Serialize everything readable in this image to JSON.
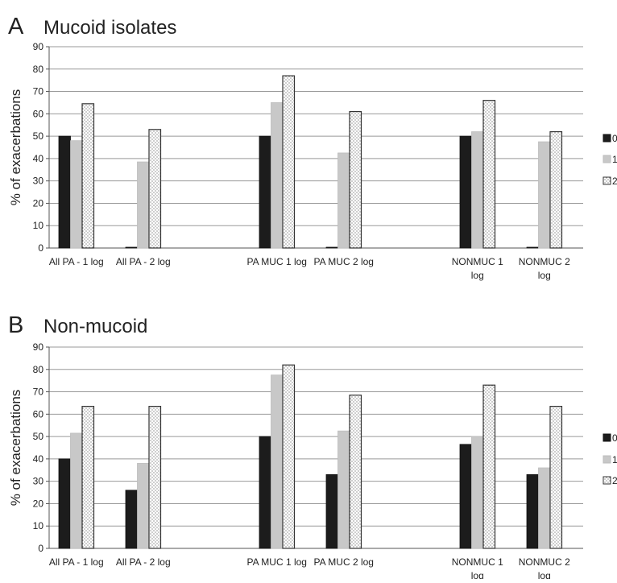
{
  "chart_data": [
    {
      "panel_letter": "A",
      "title": "Mucoid isolates",
      "type": "bar",
      "ylabel": "% of exacerbations",
      "ylim": [
        0,
        90
      ],
      "yticks": [
        0,
        10,
        20,
        30,
        40,
        50,
        60,
        70,
        80,
        90
      ],
      "categories": [
        [
          "All PA - 1 log"
        ],
        [
          "All PA - 2 log"
        ],
        [
          ""
        ],
        [
          "PA MUC 1 log"
        ],
        [
          "PA MUC 2 log"
        ],
        [
          ""
        ],
        [
          "NONMUC 1",
          "log"
        ],
        [
          "NONMUC 2",
          "log"
        ]
      ],
      "series": [
        {
          "name": "0",
          "values": [
            50,
            0,
            null,
            50,
            0,
            null,
            50,
            0
          ]
        },
        {
          "name": "1",
          "values": [
            48,
            38.5,
            null,
            65,
            42.5,
            null,
            52,
            47.5
          ]
        },
        {
          "name": "2",
          "values": [
            64.5,
            53,
            null,
            77,
            61,
            null,
            66,
            52
          ]
        }
      ],
      "legend": "right",
      "grid": true
    },
    {
      "panel_letter": "B",
      "title": "Non-mucoid",
      "type": "bar",
      "ylabel": "% of exacerbations",
      "ylim": [
        0,
        90
      ],
      "yticks": [
        0,
        10,
        20,
        30,
        40,
        50,
        60,
        70,
        80,
        90
      ],
      "categories": [
        [
          "All PA - 1 log"
        ],
        [
          "All PA - 2 log"
        ],
        [
          ""
        ],
        [
          "PA MUC 1 log"
        ],
        [
          "PA MUC 2 log"
        ],
        [
          ""
        ],
        [
          "NONMUC 1",
          "log"
        ],
        [
          "NONMUC 2",
          "log"
        ]
      ],
      "series": [
        {
          "name": "0",
          "values": [
            40,
            26,
            null,
            50,
            33,
            null,
            46.5,
            33
          ]
        },
        {
          "name": "1",
          "values": [
            51.5,
            38,
            null,
            77.5,
            52.5,
            null,
            50,
            36
          ]
        },
        {
          "name": "2",
          "values": [
            63.5,
            63.5,
            null,
            82,
            68.5,
            null,
            73,
            63.5
          ]
        }
      ],
      "legend": "right",
      "grid": true
    }
  ],
  "colors": {
    "series_0": "#1c1c1c",
    "series_1": "#c8c8c8",
    "series_2_pattern": "dotted",
    "grid": "#999999",
    "axis": "#555555"
  }
}
